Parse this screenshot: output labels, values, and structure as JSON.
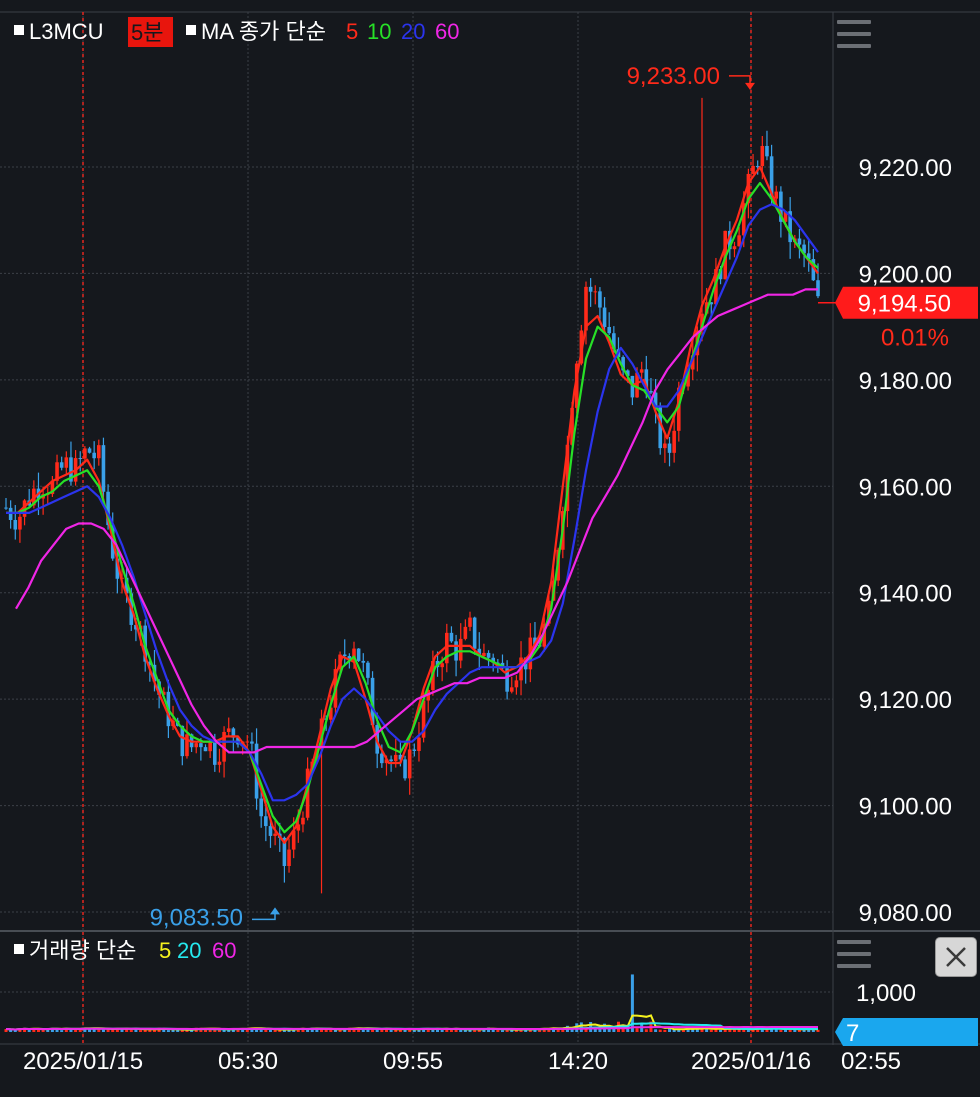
{
  "header": {
    "symbol": "L3MCU",
    "interval": "5분",
    "ma_label": "MA 종가 단순",
    "ma_periods": [
      "5",
      "10",
      "20",
      "60"
    ],
    "volume_label": "거래량 단순",
    "volume_periods": [
      "5",
      "20",
      "60"
    ]
  },
  "colors": {
    "background": "#15181d",
    "up": "#ff2a1a",
    "down": "#3aa0e8",
    "ma5": "#ff2a1a",
    "ma10": "#27e027",
    "ma20": "#2b34ee",
    "ma60": "#f026e6",
    "vol_ma5": "#f5f21e",
    "vol_ma20": "#25e8ee",
    "vol_ma60": "#f026e6",
    "current_price_badge": "#ff1b1b",
    "volume_badge": "#1aa7ee"
  },
  "icons": [
    "menu-icon",
    "close-icon",
    "arrow-down-icon",
    "arrow-up-icon"
  ],
  "chart_data": {
    "type": "candlestick",
    "title": "L3MCU 5분",
    "x_tick_labels": [
      "2025/01/15",
      "05:30",
      "09:55",
      "14:20",
      "2025/01/16",
      "02:55"
    ],
    "session_separators": [
      "2025/01/15",
      "2025/01/16"
    ],
    "price_axis": {
      "ticks": [
        9080,
        9100,
        9120,
        9140,
        9160,
        9180,
        9200,
        9220
      ],
      "tick_labels": [
        "9,080.00",
        "9,100.00",
        "9,120.00",
        "9,140.00",
        "9,160.00",
        "9,180.00",
        "9,200.00",
        "9,220.00"
      ],
      "ylim": [
        9077.5,
        9244.5
      ]
    },
    "high_marker": {
      "value": 9233.0,
      "label": "9,233.00"
    },
    "low_marker": {
      "value": 9083.5,
      "label": "9,083.50"
    },
    "current_price": {
      "value": 9194.5,
      "label": "9,194.50",
      "change": "0.01%"
    },
    "price_path": [
      9156,
      9154,
      9158,
      9161,
      9160,
      9164,
      9163,
      9167,
      9165,
      9150,
      9140,
      9136,
      9130,
      9122,
      9117,
      9112,
      9111,
      9113,
      9110,
      9113,
      9114,
      9112,
      9098,
      9094,
      9089,
      9095,
      9104,
      9112,
      9120,
      9128,
      9131,
      9124,
      9112,
      9109,
      9106,
      9110,
      9118,
      9126,
      9131,
      9129,
      9133,
      9128,
      9128,
      9124,
      9126,
      9128,
      9131,
      9137,
      9158,
      9182,
      9198,
      9195,
      9189,
      9181,
      9178,
      9183,
      9172,
      9164,
      9178,
      9186,
      9194,
      9197,
      9205,
      9208,
      9216,
      9224,
      9216,
      9210,
      9205,
      9203,
      9194
    ],
    "ma_series": [
      {
        "name": "5",
        "values": [
          9155,
          9155,
          9157,
          9159,
          9161,
          9162,
          9163,
          9165,
          9161,
          9152,
          9142,
          9136,
          9128,
          9122,
          9117,
          9113,
          9112,
          9112,
          9112,
          9113,
          9113,
          9110,
          9103,
          9096,
          9093,
          9096,
          9104,
          9113,
          9122,
          9128,
          9127,
          9120,
          9112,
          9108,
          9108,
          9114,
          9122,
          9128,
          9130,
          9130,
          9130,
          9128,
          9127,
          9125,
          9126,
          9128,
          9132,
          9142,
          9160,
          9178,
          9190,
          9192,
          9187,
          9181,
          9179,
          9180,
          9174,
          9169,
          9176,
          9186,
          9194,
          9199,
          9205,
          9210,
          9217,
          9220,
          9215,
          9210,
          9206,
          9203,
          9200
        ]
      },
      {
        "name": "10",
        "values": [
          9155,
          9155,
          9156,
          9158,
          9159,
          9161,
          9162,
          9163,
          9160,
          9153,
          9145,
          9138,
          9130,
          9124,
          9118,
          9115,
          9113,
          9112,
          9112,
          9112,
          9112,
          9110,
          9104,
          9098,
          9095,
          9097,
          9103,
          9111,
          9119,
          9126,
          9128,
          9123,
          9116,
          9111,
          9110,
          9114,
          9120,
          9126,
          9128,
          9129,
          9129,
          9128,
          9127,
          9126,
          9126,
          9127,
          9130,
          9137,
          9152,
          9170,
          9184,
          9190,
          9188,
          9183,
          9179,
          9178,
          9175,
          9172,
          9175,
          9183,
          9190,
          9197,
          9203,
          9208,
          9214,
          9217,
          9214,
          9210,
          9206,
          9203,
          9201
        ]
      },
      {
        "name": "20",
        "values": [
          9155,
          9155,
          9155,
          9156,
          9157,
          9158,
          9159,
          9160,
          9158,
          9154,
          9149,
          9143,
          9136,
          9129,
          9123,
          9118,
          9115,
          9113,
          9112,
          9112,
          9112,
          9110,
          9106,
          9101,
          9101,
          9102,
          9104,
          9109,
          9115,
          9120,
          9122,
          9120,
          9117,
          9114,
          9112,
          9112,
          9114,
          9118,
          9121,
          9123,
          9125,
          9126,
          9126,
          9126,
          9126,
          9127,
          9128,
          9131,
          9138,
          9150,
          9163,
          9174,
          9182,
          9186,
          9183,
          9179,
          9175,
          9175,
          9178,
          9183,
          9188,
          9193,
          9198,
          9203,
          9209,
          9212,
          9213,
          9212,
          9210,
          9207,
          9204
        ]
      },
      {
        "name": "60",
        "values": [
          9137,
          9141,
          9146,
          9149,
          9152,
          9153,
          9153,
          9152,
          9149,
          9144,
          9139,
          9134,
          9129,
          9124,
          9119,
          9115,
          9112,
          9110,
          9110,
          9110,
          9111,
          9111,
          9111,
          9111,
          9111,
          9111,
          9111,
          9111,
          9112,
          9114,
          9116,
          9118,
          9120,
          9121,
          9122,
          9123,
          9123,
          9124,
          9124,
          9124,
          9125,
          9128,
          9132,
          9137,
          9142,
          9148,
          9154,
          9158,
          9162,
          9167,
          9172,
          9178,
          9182,
          9185,
          9188,
          9190,
          9192,
          9193,
          9194,
          9195,
          9196,
          9196,
          9196,
          9197,
          9197
        ]
      }
    ],
    "volume": {
      "axis_tick": {
        "value": 1000,
        "label": "1,000"
      },
      "current_value": "7",
      "ma_series": [
        "5",
        "20",
        "60"
      ]
    }
  }
}
